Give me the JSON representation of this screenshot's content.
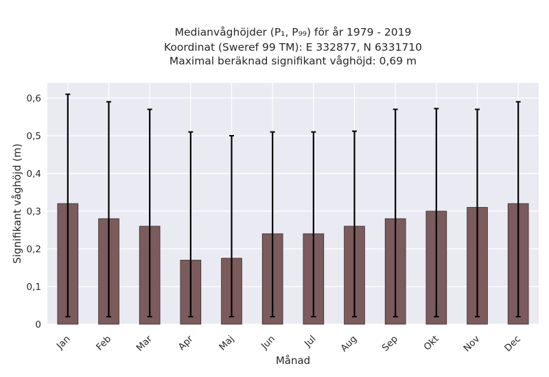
{
  "chart_data": {
    "type": "bar",
    "title_lines": [
      "Medianvåghöjder (P₁, P₉₉) för år 1979 - 2019",
      "Koordinat (Sweref 99 TM): E 332877, N 6331710",
      "Maximal beräknad signifikant våghöjd: 0,69 m"
    ],
    "xlabel": "Månad",
    "ylabel": "Signifikant våghöjd (m)",
    "categories": [
      "Jan",
      "Feb",
      "Mar",
      "Apr",
      "Maj",
      "Jun",
      "Jul",
      "Aug",
      "Sep",
      "Okt",
      "Nov",
      "Dec"
    ],
    "series": [
      {
        "values": [
          0.32,
          0.28,
          0.26,
          0.17,
          0.175,
          0.24,
          0.24,
          0.26,
          0.28,
          0.3,
          0.31,
          0.32
        ],
        "error_low": [
          0.02,
          0.02,
          0.02,
          0.02,
          0.02,
          0.02,
          0.02,
          0.02,
          0.02,
          0.02,
          0.02,
          0.02
        ],
        "error_high": [
          0.61,
          0.59,
          0.57,
          0.51,
          0.5,
          0.51,
          0.51,
          0.512,
          0.57,
          0.572,
          0.57,
          0.59
        ]
      }
    ],
    "yticks": [
      "0",
      "0,1",
      "0,2",
      "0,3",
      "0,4",
      "0,5",
      "0,6"
    ],
    "ylim": [
      0,
      0.64
    ],
    "grid": true,
    "colors": {
      "bar": "#7b5b5b",
      "bar_edge": "#3a2a2a",
      "error": "#000000",
      "background": "#eaeaf2",
      "grid": "#ffffff"
    }
  }
}
